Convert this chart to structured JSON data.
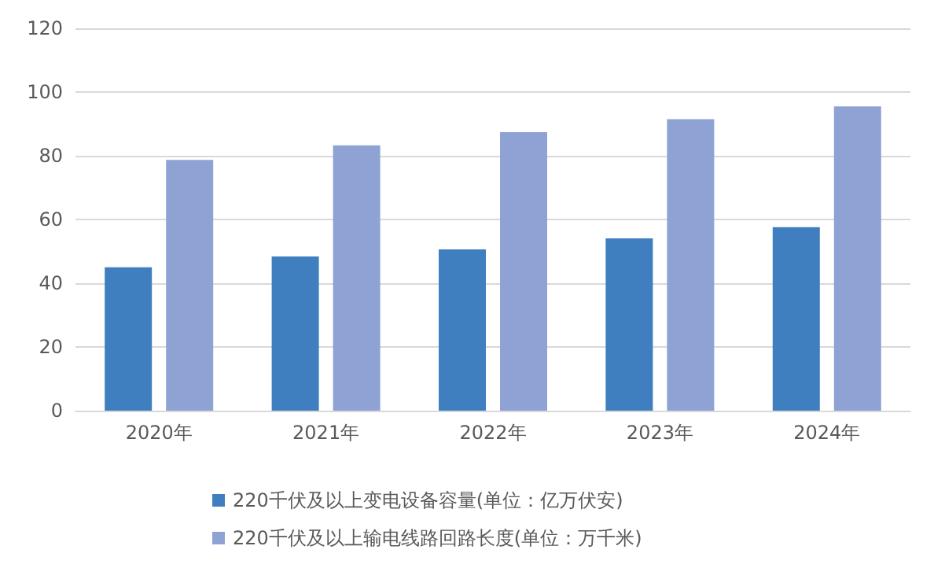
{
  "chart_data": {
    "type": "bar",
    "categories": [
      "2020年",
      "2021年",
      "2022年",
      "2023年",
      "2024年"
    ],
    "series": [
      {
        "name": "220千伏及以上变电设备容量(单位：亿万伏安)",
        "color": "#3f7fbf",
        "values": [
          45,
          48.4,
          50.6,
          54.1,
          57.6
        ]
      },
      {
        "name": "220千伏及以上输电线路回路长度(单位：万千米)",
        "color": "#8ea3d3",
        "values": [
          78.7,
          83.3,
          87.4,
          91.5,
          95.5
        ]
      }
    ],
    "ylim": [
      0,
      120
    ],
    "yticks": [
      0,
      20,
      40,
      60,
      80,
      100,
      120
    ],
    "grid": "y",
    "legend": "bottom"
  }
}
